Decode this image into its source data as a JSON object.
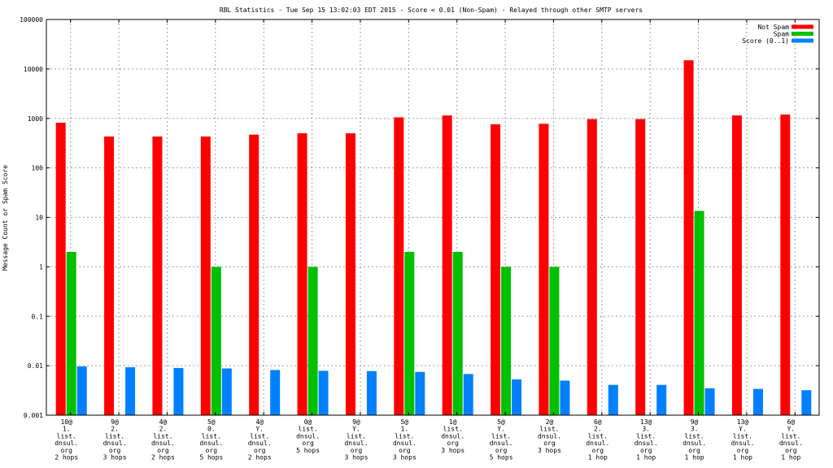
{
  "chart_data": {
    "type": "bar",
    "title": "RBL Statistics - Tue Sep 15 13:02:03 EDT 2015 - Score < 0.01 (Non-Spam) - Relayed through other SMTP servers",
    "ylabel": "Message Count or Spam Score",
    "xlabel": "",
    "yscale": "log",
    "ylim": [
      0.001,
      100000
    ],
    "grid": true,
    "legend_position": "top-right",
    "yticks": [
      {
        "value": 0.001,
        "label": "0.001"
      },
      {
        "value": 0.01,
        "label": "0.01"
      },
      {
        "value": 0.1,
        "label": "0.1"
      },
      {
        "value": 1,
        "label": "1"
      },
      {
        "value": 10,
        "label": "10"
      },
      {
        "value": 100,
        "label": "100"
      },
      {
        "value": 1000,
        "label": "1000"
      },
      {
        "value": 10000,
        "label": "10000"
      },
      {
        "value": 100000,
        "label": "100000"
      }
    ],
    "categories": [
      [
        "10@",
        "1.",
        "list.",
        "dnsul.",
        "org",
        "2 hops"
      ],
      [
        "9@",
        "2.",
        "list.",
        "dnsul.",
        "org",
        "3 hops"
      ],
      [
        "4@",
        "2.",
        "list.",
        "dnsul.",
        "org",
        "2 hops"
      ],
      [
        "5@",
        "0.",
        "list.",
        "dnsul.",
        "org",
        "5 hops"
      ],
      [
        "4@",
        "Y.",
        "list.",
        "dnsul.",
        "org",
        "2 hops"
      ],
      [
        "0@",
        "list.",
        "dnsul.",
        "org",
        "5 hops"
      ],
      [
        "9@",
        "Y.",
        "list.",
        "dnsul.",
        "org",
        "3 hops"
      ],
      [
        "5@",
        "1.",
        "list.",
        "dnsul.",
        "org",
        "3 hops"
      ],
      [
        "1@",
        "list.",
        "dnsul.",
        "org",
        "3 hops"
      ],
      [
        "5@",
        "Y.",
        "list.",
        "dnsul.",
        "org",
        "5 hops"
      ],
      [
        "2@",
        "list.",
        "dnsul.",
        "org",
        "3 hops"
      ],
      [
        "6@",
        "2.",
        "list.",
        "dnsul.",
        "org",
        "1 hop"
      ],
      [
        "13@",
        "3.",
        "list.",
        "dnsul.",
        "org",
        "1 hop"
      ],
      [
        "9@",
        "3.",
        "list.",
        "dnsul.",
        "org",
        "1 hop"
      ],
      [
        "13@",
        "Y.",
        "list.",
        "dnsul.",
        "org",
        "1 hop"
      ],
      [
        "6@",
        "Y.",
        "list.",
        "dnsul.",
        "org",
        "1 hop"
      ]
    ],
    "series": [
      {
        "name": "Not Spam",
        "color": "#ff0000",
        "values": [
          820,
          430,
          430,
          430,
          470,
          500,
          500,
          1050,
          1150,
          760,
          780,
          970,
          970,
          15000,
          1150,
          1200
        ]
      },
      {
        "name": "Spam",
        "color": "#00c000",
        "values": [
          2,
          null,
          null,
          1,
          null,
          1,
          null,
          2,
          2,
          1,
          1,
          null,
          null,
          13.5,
          null,
          null
        ]
      },
      {
        "name": "Score (0..1)",
        "color": "#0080ff",
        "values": [
          0.0097,
          0.0093,
          0.009,
          0.0088,
          0.0082,
          0.0079,
          0.0078,
          0.0075,
          0.0068,
          0.0053,
          0.005,
          0.0041,
          0.0041,
          0.0035,
          0.0034,
          0.0032
        ]
      }
    ]
  }
}
